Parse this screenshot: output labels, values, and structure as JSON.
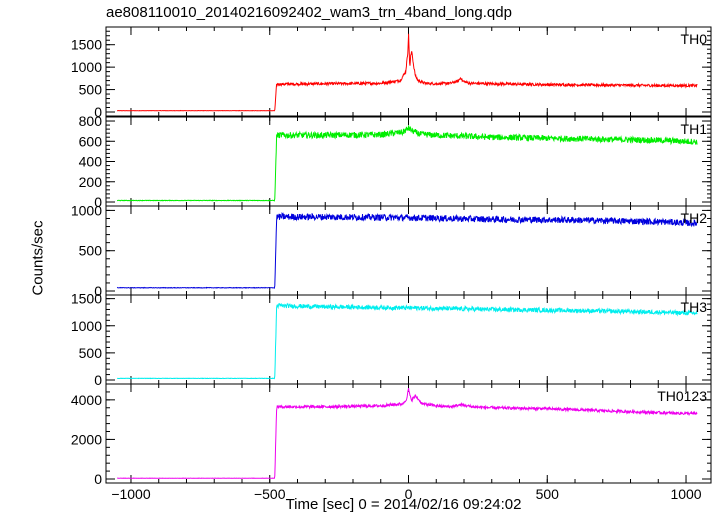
{
  "title": "ae808110010_20140216092402_wam3_trn_4band_long.qdp",
  "xlabel": "Time [sec] 0 = 2014/02/16 09:24:02",
  "ylabel": "Counts/sec",
  "chart_data": {
    "type": "line",
    "title": "ae808110010_20140216092402_wam3_trn_4band_long.qdp",
    "xlabel": "Time [sec] 0 = 2014/02/16 09:24:02",
    "ylabel": "Counts/sec",
    "xlim": [
      -1090,
      1090
    ],
    "xticks": [
      -1000,
      -500,
      0,
      500,
      1000
    ],
    "xtick_labels": [
      "−1000",
      "−500",
      "0",
      "500",
      "1000"
    ],
    "panels": [
      {
        "name": "TH0",
        "color": "#ff0000",
        "ylim": [
          0,
          1850
        ],
        "yticks": [
          0,
          500,
          1000,
          1500
        ],
        "series": [
          {
            "name": "TH0",
            "x": [
              -1050,
              -490,
              -482,
              -475,
              -300,
              -100,
              -30,
              -10,
              -2,
              0,
              2,
              5,
              8,
              12,
              18,
              25,
              35,
              60,
              100,
              150,
              180,
              188,
              195,
              220,
              300,
              500,
              700,
              900,
              1040
            ],
            "y": [
              30,
              30,
              30,
              620,
              630,
              640,
              700,
              900,
              1350,
              1800,
              1400,
              1000,
              1250,
              1350,
              1050,
              800,
              700,
              640,
              630,
              640,
              690,
              770,
              690,
              640,
              630,
              610,
              600,
              590,
              590
            ],
            "noise": 30
          }
        ]
      },
      {
        "name": "TH1",
        "color": "#00ee00",
        "ylim": [
          0,
          820
        ],
        "yticks": [
          0,
          200,
          400,
          600,
          800
        ],
        "series": [
          {
            "name": "TH1",
            "x": [
              -1050,
              -490,
              -482,
              -475,
              -300,
              -100,
              -20,
              0,
              15,
              40,
              100,
              300,
              500,
              700,
              900,
              1040
            ],
            "y": [
              15,
              15,
              15,
              660,
              660,
              665,
              690,
              730,
              700,
              670,
              660,
              640,
              630,
              620,
              610,
              595
            ],
            "noise": 30
          }
        ]
      },
      {
        "name": "TH2",
        "color": "#0000dd",
        "ylim": [
          0,
          1030
        ],
        "yticks": [
          0,
          500,
          1000
        ],
        "series": [
          {
            "name": "TH2",
            "x": [
              -1050,
              -490,
              -482,
              -475,
              -300,
              0,
              300,
              600,
              900,
              1040
            ],
            "y": [
              40,
              40,
              40,
              920,
              920,
              910,
              890,
              880,
              860,
              840
            ],
            "noise": 40
          }
        ]
      },
      {
        "name": "TH3",
        "color": "#00eeee",
        "ylim": [
          0,
          1530
        ],
        "yticks": [
          0,
          500,
          1000,
          1500
        ],
        "series": [
          {
            "name": "TH3",
            "x": [
              -1050,
              -490,
              -482,
              -475,
              -300,
              0,
              300,
              600,
              900,
              1040
            ],
            "y": [
              30,
              30,
              30,
              1370,
              1350,
              1330,
              1300,
              1280,
              1250,
              1230
            ],
            "noise": 40
          }
        ]
      },
      {
        "name": "TH0123",
        "color": "#ee00ee",
        "ylim": [
          0,
          4700
        ],
        "yticks": [
          0,
          2000,
          4000
        ],
        "series": [
          {
            "name": "TH0123",
            "x": [
              -1050,
              -490,
              -482,
              -475,
              -300,
              -100,
              -20,
              -5,
              0,
              5,
              12,
              25,
              50,
              100,
              150,
              190,
              230,
              300,
              500,
              700,
              900,
              1040
            ],
            "y": [
              40,
              40,
              40,
              3650,
              3650,
              3700,
              3800,
              4100,
              4600,
              4200,
              4000,
              4200,
              3800,
              3700,
              3650,
              3750,
              3650,
              3600,
              3550,
              3450,
              3350,
              3300
            ],
            "noise": 70
          }
        ]
      }
    ]
  }
}
